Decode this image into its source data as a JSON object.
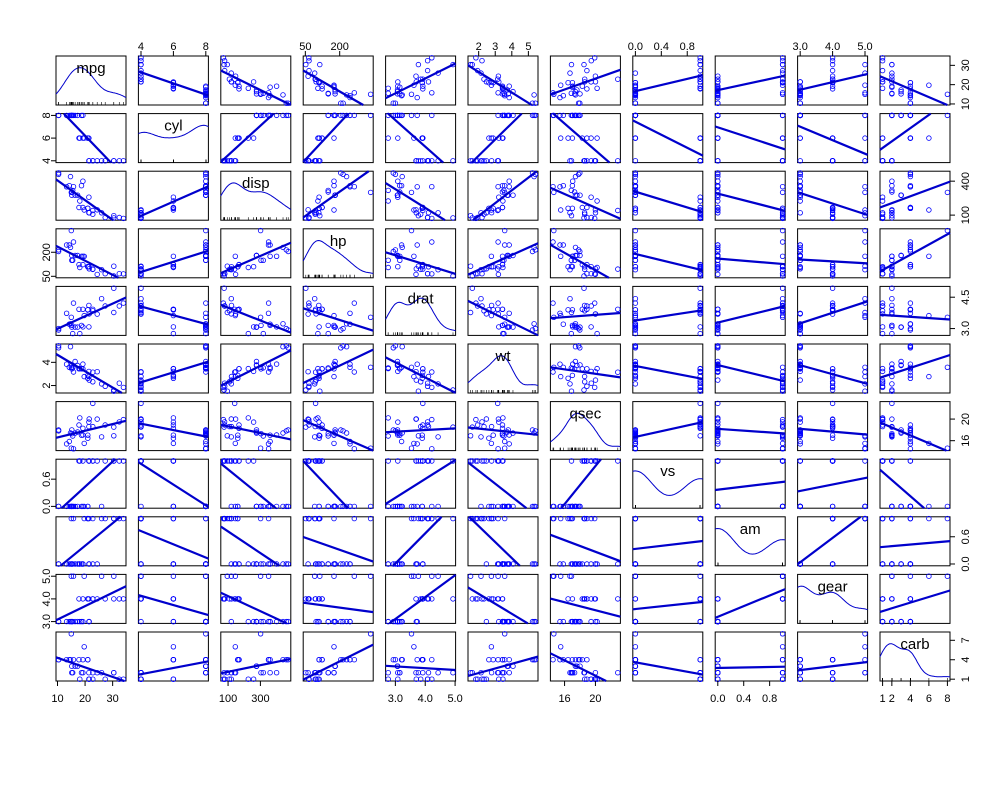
{
  "chart_data": {
    "type": "scatter-matrix",
    "variables": [
      "mpg",
      "cyl",
      "disp",
      "hp",
      "drat",
      "wt",
      "qsec",
      "vs",
      "am",
      "gear",
      "carb"
    ],
    "ranges": {
      "mpg": [
        10.4,
        33.9
      ],
      "cyl": [
        4,
        8
      ],
      "disp": [
        71.1,
        472
      ],
      "hp": [
        52,
        335
      ],
      "drat": [
        2.76,
        4.93
      ],
      "wt": [
        1.513,
        5.424
      ],
      "qsec": [
        14.5,
        22.9
      ],
      "vs": [
        0,
        1
      ],
      "am": [
        0,
        1
      ],
      "gear": [
        3,
        5
      ],
      "carb": [
        1,
        8
      ]
    },
    "ticks": {
      "mpg": [
        "10",
        "20",
        "30"
      ],
      "cyl": [
        "4",
        "6",
        "8"
      ],
      "disp": [
        "100",
        "300"
      ],
      "disp_right": [
        "100",
        "400"
      ],
      "hp": [
        "50",
        "200"
      ],
      "drat": [
        "3.0",
        "4.0",
        "5.0"
      ],
      "drat_right": [
        "3.0",
        "4.5"
      ],
      "wt": [
        "2",
        "3",
        "4",
        "5"
      ],
      "wt_left": [
        "2",
        "4"
      ],
      "qsec": [
        "16",
        "20"
      ],
      "vs": [
        "0.0",
        "0.4",
        "0.8"
      ],
      "vs_left": [
        "0.0",
        "0.6"
      ],
      "am": [
        "0.0",
        "0.4",
        "0.8"
      ],
      "am_right": [
        "0.0",
        "0.6"
      ],
      "gear": [
        "3.0",
        "4.0",
        "5.0"
      ],
      "carb": [
        "1",
        "2",
        "4",
        "6",
        "8"
      ],
      "carb_right": [
        "1",
        "4",
        "7"
      ]
    },
    "columns": {
      "mpg": [
        21,
        21,
        22.8,
        21.4,
        18.7,
        18.1,
        14.3,
        24.4,
        22.8,
        19.2,
        17.8,
        16.4,
        17.3,
        15.2,
        10.4,
        10.4,
        14.7,
        32.4,
        30.4,
        33.9,
        21.5,
        15.5,
        15.2,
        13.3,
        19.2,
        27.3,
        26,
        30.4,
        15.8,
        19.7,
        15,
        21.4
      ],
      "cyl": [
        6,
        6,
        4,
        6,
        8,
        6,
        8,
        4,
        4,
        6,
        6,
        8,
        8,
        8,
        8,
        8,
        8,
        4,
        4,
        4,
        4,
        8,
        8,
        8,
        8,
        4,
        4,
        4,
        8,
        6,
        8,
        4
      ],
      "disp": [
        160,
        160,
        108,
        258,
        360,
        225,
        360,
        146.7,
        140.8,
        167.6,
        167.6,
        275.8,
        275.8,
        275.8,
        472,
        460,
        440,
        78.7,
        75.7,
        71.1,
        120.1,
        318,
        304,
        350,
        400,
        79,
        120.3,
        95.1,
        351,
        145,
        301,
        121
      ],
      "hp": [
        110,
        110,
        93,
        110,
        175,
        105,
        245,
        62,
        95,
        123,
        123,
        180,
        180,
        180,
        205,
        215,
        230,
        66,
        52,
        65,
        97,
        150,
        150,
        245,
        175,
        66,
        91,
        113,
        264,
        175,
        335,
        109
      ],
      "drat": [
        3.9,
        3.9,
        3.85,
        3.08,
        3.15,
        2.76,
        3.21,
        3.69,
        3.92,
        3.92,
        3.92,
        3.07,
        3.07,
        3.07,
        2.93,
        3,
        3.23,
        4.08,
        4.93,
        4.22,
        3.7,
        2.76,
        3.15,
        3.73,
        3.08,
        4.08,
        4.43,
        3.77,
        4.22,
        3.62,
        3.54,
        4.11
      ],
      "wt": [
        2.62,
        2.875,
        2.32,
        3.215,
        3.44,
        3.46,
        3.57,
        3.19,
        3.15,
        3.44,
        3.44,
        4.07,
        3.73,
        3.78,
        5.25,
        5.424,
        5.345,
        2.2,
        1.615,
        1.835,
        2.465,
        3.52,
        3.435,
        3.84,
        3.845,
        1.935,
        2.14,
        1.513,
        3.17,
        2.77,
        3.57,
        2.78
      ],
      "qsec": [
        16.46,
        17.02,
        18.61,
        19.44,
        17.02,
        20.22,
        15.84,
        20,
        22.9,
        18.3,
        18.9,
        17.4,
        17.6,
        18,
        17.98,
        17.82,
        17.42,
        19.47,
        18.52,
        19.9,
        20.01,
        16.87,
        17.3,
        15.41,
        17.05,
        18.9,
        16.7,
        16.9,
        14.5,
        15.5,
        14.6,
        18.6
      ],
      "vs": [
        0,
        0,
        1,
        1,
        0,
        1,
        0,
        1,
        1,
        1,
        1,
        0,
        0,
        0,
        0,
        0,
        0,
        1,
        1,
        1,
        1,
        0,
        0,
        0,
        0,
        1,
        0,
        1,
        0,
        0,
        0,
        1
      ],
      "am": [
        1,
        1,
        1,
        0,
        0,
        0,
        0,
        0,
        0,
        0,
        0,
        0,
        0,
        0,
        0,
        0,
        0,
        1,
        1,
        1,
        0,
        0,
        0,
        0,
        0,
        1,
        1,
        1,
        1,
        1,
        1,
        1
      ],
      "gear": [
        4,
        4,
        4,
        3,
        3,
        3,
        3,
        4,
        4,
        4,
        4,
        3,
        3,
        3,
        3,
        3,
        3,
        4,
        4,
        4,
        3,
        3,
        3,
        3,
        3,
        4,
        5,
        5,
        5,
        5,
        5,
        4
      ],
      "carb": [
        4,
        4,
        1,
        1,
        2,
        1,
        4,
        2,
        2,
        4,
        4,
        3,
        3,
        3,
        4,
        4,
        4,
        1,
        2,
        1,
        1,
        2,
        2,
        4,
        2,
        1,
        2,
        2,
        4,
        6,
        8,
        2
      ]
    },
    "colors": {
      "points": "#0000ff",
      "lines": "#0000cc",
      "axes": "#000000"
    }
  }
}
